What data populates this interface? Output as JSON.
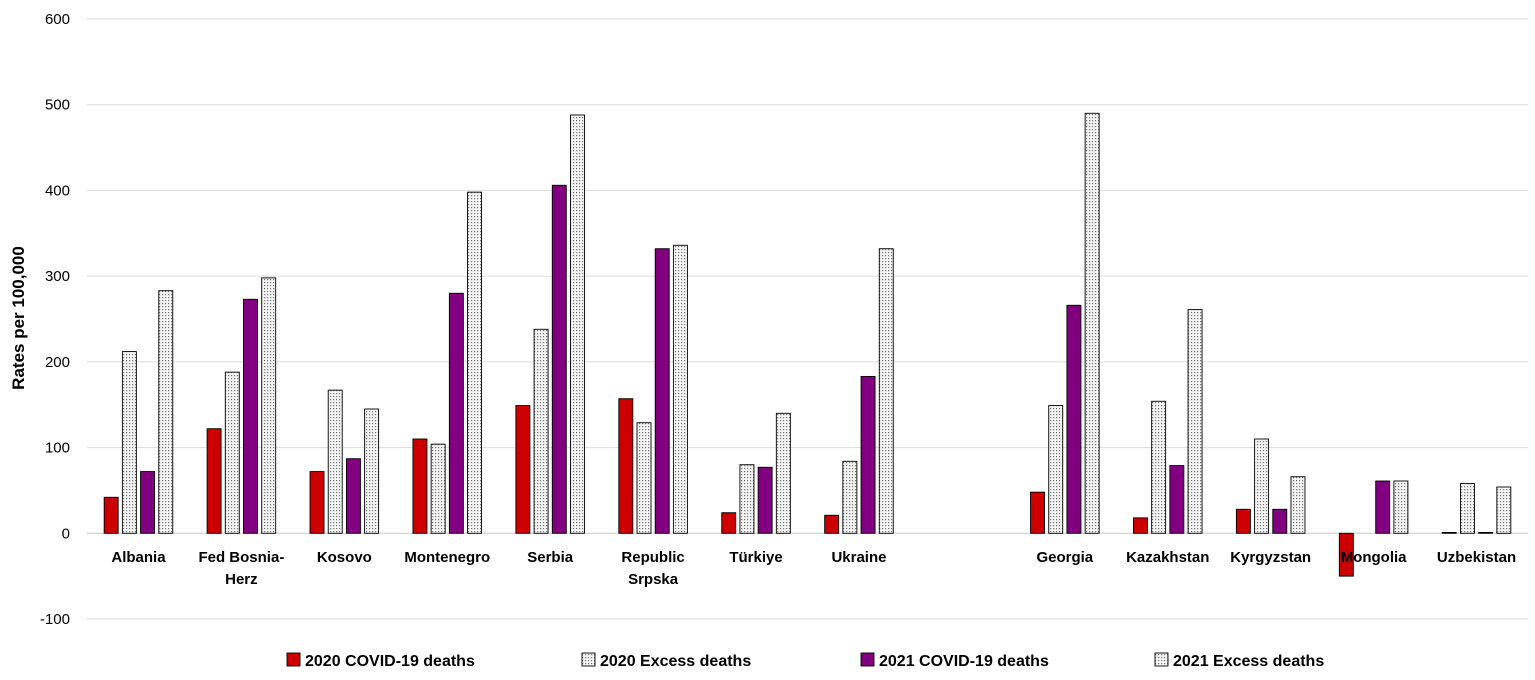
{
  "chart_data": {
    "type": "bar",
    "title": "",
    "xlabel": "",
    "ylabel": "Rates per 100,000",
    "ylim": [
      -100,
      600
    ],
    "yticks": [
      -100,
      0,
      100,
      200,
      300,
      400,
      500,
      600
    ],
    "grid": true,
    "legend_position": "bottom",
    "categories": [
      [
        "Albania"
      ],
      [
        "Fed Bosnia-",
        "Herz"
      ],
      [
        "Kosovo"
      ],
      [
        "Montenegro"
      ],
      [
        "Serbia"
      ],
      [
        "Republic",
        "Srpska"
      ],
      [
        "Türkiye"
      ],
      [
        "Ukraine"
      ],
      [
        ""
      ],
      [
        "Georgia"
      ],
      [
        "Kazakhstan"
      ],
      [
        "Kyrgyzstan"
      ],
      [
        "Mongolia"
      ],
      [
        "Uzbekistan"
      ]
    ],
    "series": [
      {
        "name": "2020 COVID-19 deaths",
        "color": "#cc0000",
        "pattern": "solid",
        "values": [
          42,
          122,
          72,
          110,
          149,
          157,
          24,
          21,
          null,
          48,
          18,
          28,
          -50,
          1
        ]
      },
      {
        "name": "2020 Excess deaths",
        "color": "#d0d0d0",
        "pattern": "dots",
        "values": [
          212,
          188,
          167,
          104,
          238,
          129,
          80,
          84,
          null,
          149,
          154,
          110,
          null,
          58
        ]
      },
      {
        "name": "2021 COVID-19 deaths",
        "color": "#800080",
        "pattern": "solid",
        "values": [
          72,
          273,
          87,
          280,
          406,
          332,
          77,
          183,
          null,
          266,
          79,
          28,
          61,
          1
        ]
      },
      {
        "name": "2021 Excess deaths",
        "color": "#d0d0d0",
        "pattern": "dots",
        "values": [
          283,
          298,
          145,
          398,
          488,
          336,
          140,
          332,
          null,
          490,
          261,
          66,
          61,
          54
        ]
      }
    ]
  }
}
